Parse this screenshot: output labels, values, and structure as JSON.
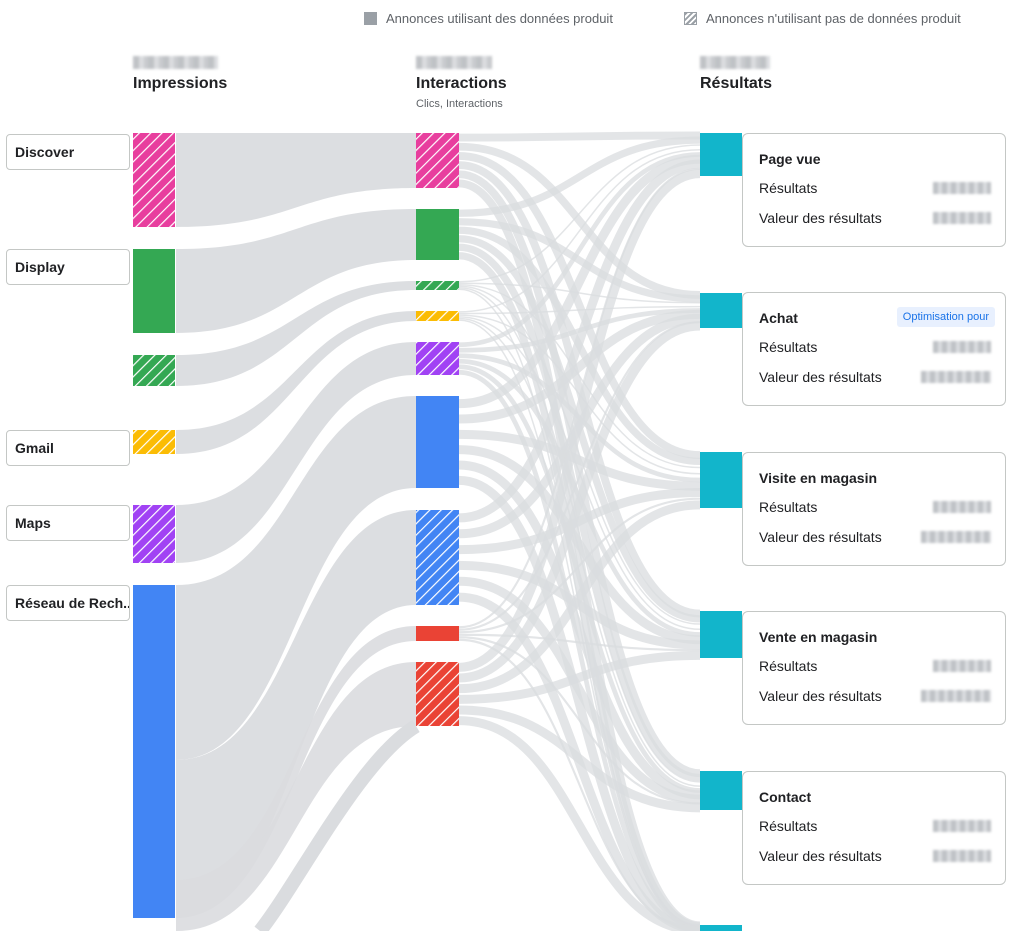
{
  "legend": {
    "solid_label": "Annonces utilisant des données produit",
    "hatched_label": "Annonces n'utilisant pas de données produit"
  },
  "columns": {
    "impressions": {
      "title": "Impressions"
    },
    "interactions": {
      "title": "Interactions",
      "subtitle": "Clics, Interactions"
    },
    "results": {
      "title": "Résultats"
    }
  },
  "sources": [
    {
      "label": "Discover"
    },
    {
      "label": "Display"
    },
    {
      "label": "Gmail"
    },
    {
      "label": "Maps"
    },
    {
      "label": "Réseau de Rech..."
    }
  ],
  "outcomes": [
    {
      "title": "Page vue",
      "results_label": "Résultats",
      "value_label": "Valeur des résultats"
    },
    {
      "title": "Achat",
      "badge": "Optimisation pour",
      "results_label": "Résultats",
      "value_label": "Valeur des résultats"
    },
    {
      "title": "Visite en magasin",
      "results_label": "Résultats",
      "value_label": "Valeur des résultats"
    },
    {
      "title": "Vente en magasin",
      "results_label": "Résultats",
      "value_label": "Valeur des résultats"
    },
    {
      "title": "Contact",
      "results_label": "Résultats",
      "value_label": "Valeur des résultats"
    }
  ],
  "colors": {
    "discover": "#e83e9e",
    "display": "#34a853",
    "gmail": "#fbbc04",
    "maps": "#a142f4",
    "search": "#4285f4",
    "red": "#ea4335",
    "result": "#12b5cb",
    "flow": "#dadcdf"
  }
}
